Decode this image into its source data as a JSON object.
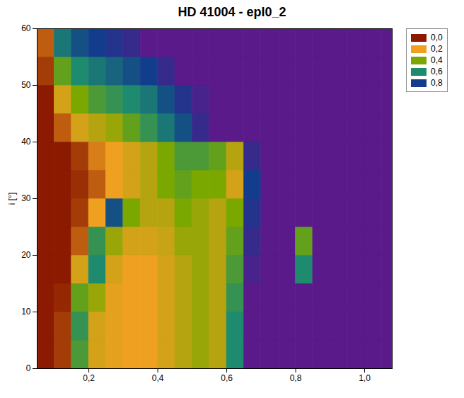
{
  "chart_data": {
    "type": "heatmap",
    "title": "HD 41004 - epl0_2",
    "y_label": "i [°]",
    "x_edges": [
      0.05,
      0.1,
      0.15,
      0.2,
      0.25,
      0.3,
      0.35,
      0.4,
      0.45,
      0.5,
      0.55,
      0.6,
      0.65,
      0.7,
      0.75,
      0.8,
      0.85,
      0.9,
      0.95,
      1.0,
      1.05,
      1.1
    ],
    "y_edges": [
      0,
      5,
      10,
      15,
      20,
      25,
      30,
      35,
      40,
      45,
      50,
      55,
      60
    ],
    "values": [
      [
        0,
        0.05,
        0.5,
        0.25,
        0.22,
        0.2,
        0.2,
        0.25,
        0.3,
        0.35,
        0.3,
        0.6,
        1,
        1,
        1,
        1,
        1,
        1,
        1,
        1,
        1
      ],
      [
        0,
        0.05,
        0.55,
        0.25,
        0.22,
        0.2,
        0.2,
        0.25,
        0.3,
        0.35,
        0.3,
        0.6,
        1,
        1,
        1,
        1,
        1,
        1,
        1,
        1,
        1
      ],
      [
        0,
        0.02,
        0.45,
        0.35,
        0.22,
        0.2,
        0.2,
        0.25,
        0.3,
        0.35,
        0.3,
        0.55,
        1,
        1,
        1,
        1,
        1,
        1,
        1,
        1,
        1
      ],
      [
        0,
        0,
        0.25,
        0.6,
        0.25,
        0.2,
        0.2,
        0.25,
        0.3,
        0.35,
        0.3,
        0.5,
        0.95,
        1,
        1,
        0.6,
        1,
        1,
        1,
        1,
        1
      ],
      [
        0,
        0,
        0.1,
        0.55,
        0.35,
        0.25,
        0.25,
        0.27,
        0.35,
        0.35,
        0.3,
        0.45,
        0.9,
        1,
        1,
        0.45,
        1,
        1,
        1,
        1,
        1
      ],
      [
        0,
        0,
        0.05,
        0.2,
        0.75,
        0.4,
        0.3,
        0.3,
        0.4,
        0.35,
        0.3,
        0.4,
        0.85,
        1,
        1,
        1,
        1,
        1,
        1,
        1,
        1
      ],
      [
        0,
        0,
        0.03,
        0.1,
        0.2,
        0.25,
        0.3,
        0.4,
        0.45,
        0.4,
        0.4,
        0.25,
        0.8,
        1,
        1,
        1,
        1,
        1,
        1,
        1,
        1
      ],
      [
        0,
        0,
        0.05,
        0.15,
        0.2,
        0.25,
        0.3,
        0.4,
        0.5,
        0.5,
        0.45,
        0.3,
        0.9,
        1,
        1,
        1,
        1,
        1,
        1,
        1,
        1
      ],
      [
        0,
        0.1,
        0.25,
        0.3,
        0.35,
        0.45,
        0.55,
        0.65,
        0.75,
        0.9,
        1,
        1,
        1,
        1,
        1,
        1,
        1,
        1,
        1,
        1,
        1
      ],
      [
        0,
        0.25,
        0.4,
        0.5,
        0.55,
        0.6,
        0.65,
        0.75,
        0.85,
        0.95,
        1,
        1,
        1,
        1,
        1,
        1,
        1,
        1,
        1,
        1,
        1
      ],
      [
        0.05,
        0.45,
        0.6,
        0.65,
        0.7,
        0.75,
        0.8,
        0.9,
        1,
        1,
        1,
        1,
        1,
        1,
        1,
        1,
        1,
        1,
        1,
        1,
        1
      ],
      [
        0.1,
        0.65,
        0.75,
        0.8,
        0.85,
        0.9,
        1,
        1,
        1,
        1,
        1,
        1,
        1,
        1,
        1,
        1,
        1,
        1,
        1,
        1,
        1
      ]
    ],
    "xlim": [
      0.05,
      1.08
    ],
    "ylim": [
      0,
      60
    ],
    "xticks": [
      {
        "value": 0.2,
        "label": "0,2"
      },
      {
        "value": 0.4,
        "label": "0,4"
      },
      {
        "value": 0.6,
        "label": "0,6"
      },
      {
        "value": 0.8,
        "label": "0,8"
      },
      {
        "value": 1.0,
        "label": "1,0"
      }
    ],
    "yticks": [
      0,
      10,
      20,
      30,
      40,
      50,
      60
    ],
    "colorbar": {
      "range": [
        0,
        1
      ],
      "ticks": [
        {
          "value": 0,
          "label": "0,0"
        },
        {
          "value": 0.2,
          "label": "0,2"
        },
        {
          "value": 0.4,
          "label": "0,4"
        },
        {
          "value": 0.6,
          "label": "0,6"
        },
        {
          "value": 0.8,
          "label": "0,8"
        }
      ],
      "colors": [
        "#8b1a00",
        "#f0a020",
        "#7aa800",
        "#1e8a6e",
        "#123c8c",
        "#5a1a8a"
      ]
    },
    "legend": "right"
  }
}
